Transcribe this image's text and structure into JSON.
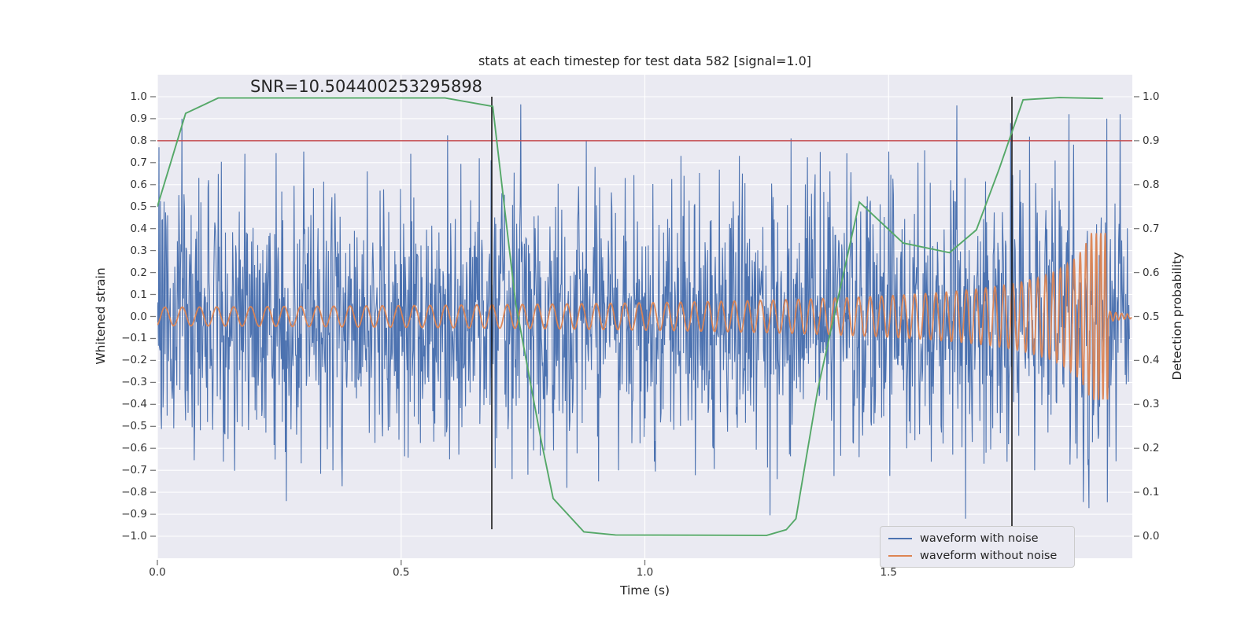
{
  "chart_data": {
    "type": "line",
    "title": "stats at each timestep for test data 582 [signal=1.0]",
    "annotation": "SNR=10.504400253295898",
    "xlabel": "Time (s)",
    "ylabel_left": "Whitened strain",
    "ylabel_right": "Detection probability",
    "x_range": [
      0.0,
      2.0
    ],
    "x_ticks": [
      0.0,
      0.5,
      1.0,
      1.5
    ],
    "y_left_range": [
      -1.1,
      1.1
    ],
    "y_left_ticks": [
      1.0,
      0.9,
      0.8,
      0.7,
      0.6,
      0.5,
      0.4,
      0.3,
      0.2,
      0.1,
      0.0,
      -0.1,
      -0.2,
      -0.3,
      -0.4,
      -0.5,
      -0.6,
      -0.7,
      -0.8,
      -0.9,
      -1.0
    ],
    "y_right_range": [
      -0.05,
      1.05
    ],
    "y_right_ticks": [
      1.0,
      0.9,
      0.8,
      0.7,
      0.6,
      0.5,
      0.4,
      0.3,
      0.2,
      0.1,
      0.0
    ],
    "grid": true,
    "legend_position": "lower right",
    "series": [
      {
        "name": "waveform with noise",
        "color": "#4c72b0",
        "axis": "left",
        "kind": "noisy_strain",
        "noise": {
          "seed": 20,
          "samples": 1900,
          "sigma": 0.28,
          "clip": 1.03,
          "t_end": 1.995
        },
        "notable_peaks": [
          [
            0.003,
            0.77
          ],
          [
            0.05,
            0.9
          ],
          [
            0.105,
            0.62
          ],
          [
            0.18,
            0.74
          ],
          [
            0.265,
            -0.84
          ],
          [
            0.3,
            0.75
          ],
          [
            0.36,
            -0.7
          ],
          [
            0.43,
            0.66
          ],
          [
            0.52,
            0.74
          ],
          [
            0.6,
            -0.65
          ],
          [
            0.66,
            0.72
          ],
          [
            0.745,
            0.965
          ],
          [
            0.76,
            -0.72
          ],
          [
            0.84,
            -0.78
          ],
          [
            0.88,
            0.8
          ],
          [
            0.905,
            -0.75
          ],
          [
            0.96,
            0.63
          ],
          [
            1.02,
            -0.66
          ],
          [
            1.08,
            0.64
          ],
          [
            1.14,
            -0.6
          ],
          [
            1.2,
            0.65
          ],
          [
            1.272,
            -0.74
          ],
          [
            1.3,
            0.81
          ],
          [
            1.38,
            0.66
          ],
          [
            1.44,
            -0.64
          ],
          [
            1.5,
            0.75
          ],
          [
            1.56,
            0.7
          ],
          [
            1.64,
            0.96
          ],
          [
            1.658,
            -0.92
          ],
          [
            1.7,
            -0.62
          ],
          [
            1.75,
            0.88
          ],
          [
            1.8,
            -0.7
          ],
          [
            1.87,
            0.92
          ],
          [
            1.91,
            -0.65
          ],
          [
            1.948,
            0.9
          ],
          [
            1.975,
            0.92
          ]
        ]
      },
      {
        "name": "waveform without noise",
        "color": "#dd8452",
        "axis": "left",
        "kind": "chirp_signal",
        "chirp": {
          "t_merger": 1.95,
          "t_end": 1.998,
          "f0_hz": 28,
          "freq_exponent": -0.3,
          "freq_max_hz": 110,
          "a0": 0.042,
          "amp_exponent": -0.55,
          "amp_max": 0.38,
          "ringdown_amp": 0.02,
          "ringdown_tau": 0.03,
          "ringdown_floor": 0.006,
          "ringdown_freq_hz": 85,
          "phase_offset": 0.8
        }
      },
      {
        "name": "detection probability",
        "color": "#55a868",
        "axis": "right",
        "kind": "polyline",
        "points": [
          [
            0.0,
            0.75
          ],
          [
            0.058,
            0.962
          ],
          [
            0.125,
            0.997
          ],
          [
            0.59,
            0.997
          ],
          [
            0.688,
            0.978
          ],
          [
            0.735,
            0.53
          ],
          [
            0.787,
            0.22
          ],
          [
            0.812,
            0.086
          ],
          [
            0.875,
            0.01
          ],
          [
            0.94,
            0.003
          ],
          [
            1.25,
            0.002
          ],
          [
            1.29,
            0.015
          ],
          [
            1.31,
            0.04
          ],
          [
            1.355,
            0.335
          ],
          [
            1.44,
            0.76
          ],
          [
            1.53,
            0.667
          ],
          [
            1.625,
            0.645
          ],
          [
            1.68,
            0.697
          ],
          [
            1.727,
            0.836
          ],
          [
            1.776,
            0.993
          ],
          [
            1.85,
            0.998
          ],
          [
            1.94,
            0.996
          ]
        ]
      }
    ],
    "threshold_line": {
      "value": 0.9,
      "axis": "right",
      "color": "#c44e52"
    },
    "event_markers": {
      "times": [
        0.686,
        1.753
      ],
      "color": "#1a1a1a"
    },
    "style": {
      "plot_bg": "#eaeaf2",
      "grid_color": "#ffffff",
      "tick_color": "#777777"
    }
  },
  "legend": {
    "items": [
      {
        "label": "waveform with noise",
        "color": "#4c72b0"
      },
      {
        "label": "waveform without noise",
        "color": "#dd8452"
      }
    ]
  }
}
